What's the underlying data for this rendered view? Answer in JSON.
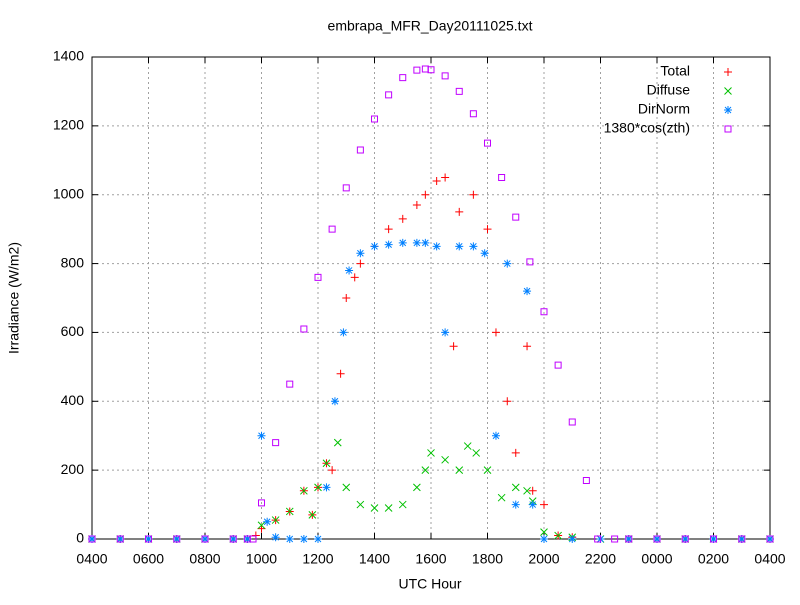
{
  "chart_data": {
    "type": "scatter",
    "title": "embrapa_MFR_Day20111025.txt",
    "xlabel": "UTC Hour",
    "ylabel": "Irradiance (W/m2)",
    "xlim": [
      4,
      28
    ],
    "xticks": [
      {
        "value": 4,
        "label": "0400"
      },
      {
        "value": 6,
        "label": "0600"
      },
      {
        "value": 8,
        "label": "0800"
      },
      {
        "value": 10,
        "label": "1000"
      },
      {
        "value": 12,
        "label": "1200"
      },
      {
        "value": 14,
        "label": "1400"
      },
      {
        "value": 16,
        "label": "1600"
      },
      {
        "value": 18,
        "label": "1800"
      },
      {
        "value": 20,
        "label": "2000"
      },
      {
        "value": 22,
        "label": "2200"
      },
      {
        "value": 24,
        "label": "0000"
      },
      {
        "value": 26,
        "label": "0200"
      },
      {
        "value": 28,
        "label": "0400"
      }
    ],
    "ylim": [
      0,
      1400
    ],
    "yticks": [
      0,
      200,
      400,
      600,
      800,
      1000,
      1200,
      1400
    ],
    "grid": true,
    "legend": "top-right",
    "series": [
      {
        "name": "Total",
        "color": "#ff0000",
        "marker": "plus",
        "x": [
          4,
          5,
          6,
          7,
          8,
          9,
          9.5,
          9.8,
          10,
          10.5,
          11,
          11.5,
          11.8,
          12,
          12.3,
          12.5,
          12.8,
          13,
          13.3,
          13.5,
          14,
          14.5,
          15,
          15.5,
          15.8,
          16.2,
          16.5,
          16.8,
          17,
          17.5,
          18,
          18.3,
          18.7,
          19,
          19.4,
          19.6,
          20,
          20.5,
          21,
          22,
          23,
          24,
          25,
          26,
          27,
          28
        ],
        "values": [
          0,
          0,
          0,
          0,
          0,
          0,
          0,
          10,
          30,
          55,
          80,
          140,
          70,
          150,
          220,
          200,
          480,
          700,
          760,
          800,
          850,
          900,
          930,
          970,
          1000,
          1040,
          1050,
          560,
          950,
          1000,
          900,
          600,
          400,
          250,
          560,
          140,
          100,
          10,
          5,
          0,
          0,
          0,
          0,
          0,
          0,
          0
        ]
      },
      {
        "name": "Diffuse",
        "color": "#00c000",
        "marker": "cross",
        "x": [
          4,
          5,
          6,
          7,
          8,
          9,
          9.5,
          10,
          10.5,
          11,
          11.5,
          11.8,
          12,
          12.3,
          12.7,
          13,
          13.5,
          14,
          14.5,
          15,
          15.5,
          15.8,
          16,
          16.5,
          17,
          17.3,
          17.6,
          18,
          18.5,
          19,
          19.4,
          19.6,
          20,
          20.5,
          21,
          22,
          23,
          24,
          25,
          26,
          27,
          28
        ],
        "values": [
          0,
          0,
          0,
          0,
          0,
          0,
          0,
          40,
          55,
          80,
          140,
          70,
          150,
          220,
          280,
          150,
          100,
          90,
          90,
          100,
          150,
          200,
          250,
          230,
          200,
          270,
          250,
          200,
          120,
          150,
          140,
          110,
          20,
          10,
          5,
          0,
          0,
          0,
          0,
          0,
          0,
          0
        ]
      },
      {
        "name": "DirNorm",
        "color": "#0080ff",
        "marker": "star",
        "x": [
          4,
          5,
          6,
          7,
          8,
          9,
          9.5,
          10,
          10.2,
          10.5,
          11,
          11.5,
          12,
          12.3,
          12.6,
          12.9,
          13.1,
          13.5,
          14,
          14.5,
          15,
          15.5,
          15.8,
          16.2,
          16.5,
          17,
          17.5,
          17.9,
          18.3,
          18.7,
          19,
          19.4,
          19.6,
          20,
          21,
          22,
          23,
          24,
          25,
          26,
          27,
          28
        ],
        "values": [
          0,
          0,
          0,
          0,
          0,
          0,
          0,
          300,
          50,
          5,
          0,
          0,
          0,
          150,
          400,
          600,
          780,
          830,
          850,
          855,
          860,
          860,
          860,
          850,
          600,
          850,
          850,
          830,
          300,
          800,
          100,
          720,
          100,
          0,
          0,
          0,
          0,
          0,
          0,
          0,
          0,
          0
        ]
      },
      {
        "name": "1380*cos(zth)",
        "color": "#c000ff",
        "marker": "square",
        "x": [
          4,
          5,
          6,
          7,
          8,
          9,
          9.5,
          9.7,
          10,
          10.5,
          11,
          11.5,
          12,
          12.5,
          13,
          13.5,
          14,
          14.5,
          15,
          15.5,
          15.8,
          16,
          16.5,
          17,
          17.5,
          18,
          18.5,
          19,
          19.5,
          20,
          20.5,
          21,
          21.5,
          21.9,
          22.5,
          23,
          24,
          25,
          26,
          27,
          28
        ],
        "values": [
          0,
          0,
          0,
          0,
          0,
          0,
          0,
          0,
          105,
          280,
          450,
          610,
          760,
          900,
          1020,
          1130,
          1220,
          1290,
          1340,
          1362,
          1365,
          1363,
          1345,
          1300,
          1235,
          1150,
          1050,
          935,
          805,
          660,
          505,
          340,
          170,
          0,
          0,
          0,
          0,
          0,
          0,
          0,
          0
        ]
      }
    ]
  }
}
